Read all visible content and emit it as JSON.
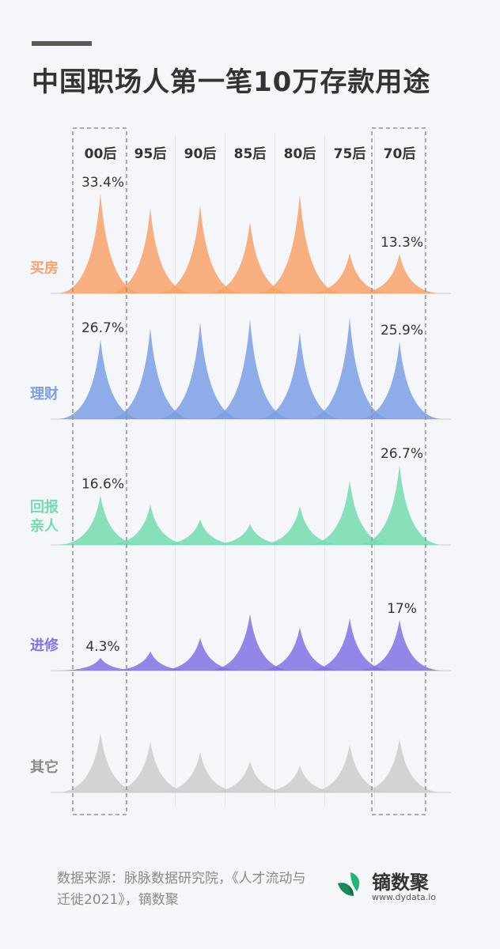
{
  "title": "中国职场人第一笔10万存款用途",
  "chart_data": {
    "type": "area",
    "title": "中国职场人第一笔10万存款用途",
    "generations": [
      "00后",
      "95后",
      "90后",
      "85后",
      "80后",
      "75后",
      "70后"
    ],
    "highlighted_generations": [
      "00后",
      "70后"
    ],
    "unit": "%",
    "series": [
      {
        "name": "买房",
        "color": "#f7a26a",
        "values": [
          33.4,
          28.5,
          29.5,
          24.0,
          33.0,
          13.5,
          13.3
        ],
        "labels": {
          "00后": "33.4%",
          "70后": "13.3%"
        }
      },
      {
        "name": "理财",
        "color": "#7b9fe4",
        "values": [
          26.7,
          30.5,
          32.5,
          33.5,
          29.0,
          34.0,
          25.9
        ],
        "labels": {
          "00后": "26.7%",
          "70后": "25.9%"
        }
      },
      {
        "name": "回报亲人",
        "color": "#74dcb0",
        "values": [
          16.6,
          13.5,
          8.5,
          7.0,
          13.0,
          21.5,
          26.7
        ],
        "labels": {
          "00后": "16.6%",
          "70后": "26.7%"
        }
      },
      {
        "name": "进修",
        "color": "#8172e6",
        "values": [
          4.3,
          6.5,
          11.0,
          19.0,
          14.5,
          17.5,
          17.0
        ],
        "labels": {
          "00后": "4.3%",
          "70后": "17%"
        }
      },
      {
        "name": "其它",
        "color": "#cccccc",
        "values": [
          20.0,
          17.0,
          13.5,
          10.5,
          9.0,
          16.0,
          18.0
        ],
        "labels": {}
      }
    ]
  },
  "footer": {
    "source": "数据来源：脉脉数据研究院，《人才流动与迁徙2021》，镝数聚",
    "brand_name": "镝数聚",
    "brand_url": "www.dydata.io"
  }
}
